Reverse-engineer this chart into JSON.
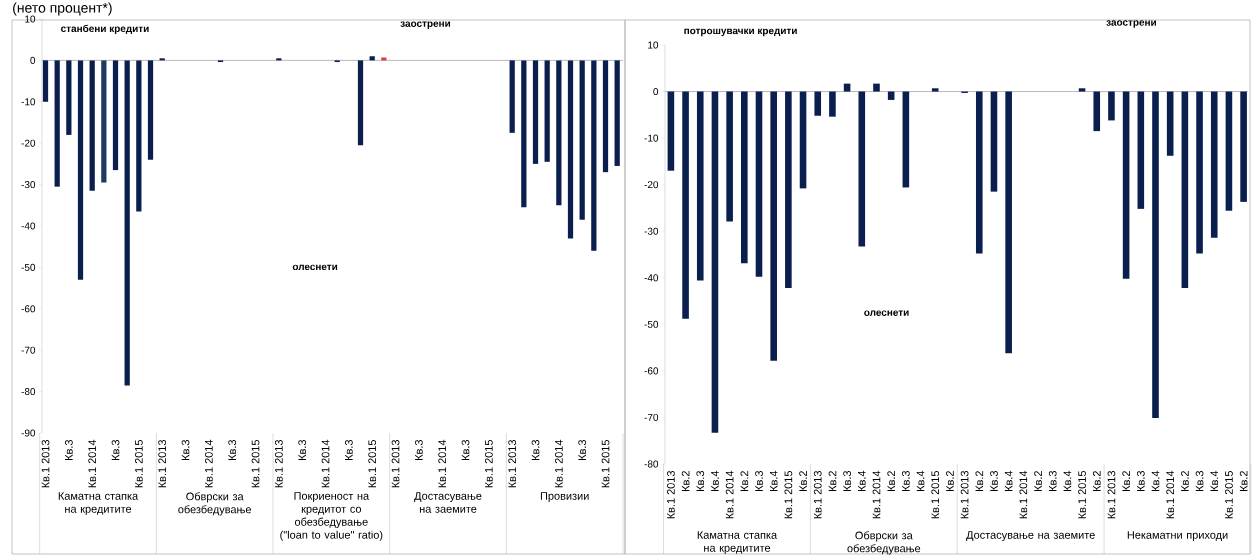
{
  "chart_data": [
    {
      "type": "bar",
      "title": "станбени кредити",
      "subtitle": "(нето процент*)",
      "categories": [
        "Кв.1 2013",
        null,
        "Кв.3",
        null,
        "Кв.1 2014",
        null,
        "Кв.3",
        null,
        "Кв.1 2015",
        null,
        "Кв.1 2013",
        null,
        "Кв.3",
        null,
        "Кв.1 2014",
        null,
        "Кв.3",
        null,
        "Кв.1 2015",
        null,
        "Кв.1 2013",
        null,
        "Кв.3",
        null,
        "Кв.1 2014",
        null,
        "Кв.3",
        null,
        "Кв.1 2015",
        null,
        "Кв.1 2013",
        null,
        "Кв.3",
        null,
        "Кв.1 2014",
        null,
        "Кв.3",
        null,
        "Кв.1 2015",
        null,
        "Кв.1 2013",
        null,
        "Кв.3",
        null,
        "Кв.1 2014",
        null,
        "Кв.3",
        null,
        "Кв.1 2015",
        null
      ],
      "values": [
        -10,
        -30.5,
        -18,
        -53,
        -31.5,
        -29.5,
        -26.5,
        -78.5,
        -36.5,
        -24,
        0.5,
        null,
        null,
        null,
        null,
        -0.4,
        null,
        null,
        null,
        null,
        0.5,
        null,
        null,
        null,
        null,
        -0.4,
        null,
        -20.5,
        1,
        0.7,
        null,
        null,
        null,
        null,
        null,
        null,
        null,
        null,
        null,
        null,
        -17.5,
        -35.5,
        -25,
        -24.5,
        -35,
        -43,
        -38.5,
        -46,
        -27,
        -25.5
      ],
      "colors": [
        "#0b1f4f",
        "#0b1f4f",
        "#0b1f4f",
        "#0b1f4f",
        "#0b1f4f",
        "#1f3a5f",
        "#0b1f4f",
        "#0b1f4f",
        "#0b1f4f",
        "#0b1f4f",
        "#0b1f4f",
        "#0b1f4f",
        "#0b1f4f",
        "#0b1f4f",
        "#0b1f4f",
        "#0b1f4f",
        "#0b1f4f",
        "#0b1f4f",
        "#0b1f4f",
        "#0b1f4f",
        "#0b1f4f",
        "#0b1f4f",
        "#0b1f4f",
        "#0b1f4f",
        "#0b1f4f",
        "#0b1f4f",
        "#0b1f4f",
        "#0b1f4f",
        "#0b1f4f",
        "#e03c3c",
        "#0b1f4f",
        "#0b1f4f",
        "#0b1f4f",
        "#0b1f4f",
        "#0b1f4f",
        "#0b1f4f",
        "#0b1f4f",
        "#0b1f4f",
        "#0b1f4f",
        "#0b1f4f",
        "#0b1f4f",
        "#0b1f4f",
        "#0b1f4f",
        "#0b1f4f",
        "#0b1f4f",
        "#0b1f4f",
        "#0b1f4f",
        "#0b1f4f",
        "#0b1f4f",
        "#0b1f4f"
      ],
      "ylim": [
        -90,
        10
      ],
      "yticks": [
        -90,
        -80,
        -70,
        -60,
        -50,
        -40,
        -30,
        -20,
        -10,
        0,
        10
      ],
      "annotations": [
        "заострени",
        "олеснети",
        "Каматна стапка на кредитите",
        "Обврски за обезбедување",
        "Покриеност на кредитот со обезбедување (\"loan to value\" ratio)",
        "Достасување на заемите",
        "Провизии"
      ]
    },
    {
      "type": "bar",
      "title": "потрошувачки кредити",
      "categories": [
        "Кв.1 2013",
        "Кв.2",
        "Кв.3",
        "Кв.4",
        "Кв.1 2014",
        "Кв.2",
        "Кв.3",
        "Кв.4",
        "Кв.1 2015",
        "Кв.2",
        "Кв.1 2013",
        "Кв.2",
        "Кв.3",
        "Кв.4",
        "Кв.1 2014",
        "Кв.2",
        "Кв.3",
        "Кв.4",
        "Кв.1 2015",
        "Кв.2",
        "Кв.1 2013",
        "Кв.2",
        "Кв.3",
        "Кв.4",
        "Кв.1 2014",
        "Кв.2",
        "Кв.3",
        "Кв.4",
        "Кв.1 2015",
        "Кв.2",
        "Кв.1 2013",
        "Кв.2",
        "Кв.3",
        "Кв.4",
        "Кв.1 2014",
        "Кв.2",
        "Кв.3",
        "Кв.4",
        "Кв.1 2015",
        "Кв.2"
      ],
      "values": [
        -17,
        -48.8,
        -40.6,
        -73.3,
        -27.9,
        -36.9,
        -39.8,
        -57.8,
        -42.2,
        -20.8,
        -5.2,
        -5.4,
        1.7,
        -33.3,
        1.7,
        -1.8,
        -20.6,
        null,
        0.7,
        null,
        -0.3,
        -34.8,
        -21.5,
        -56.2,
        null,
        null,
        null,
        null,
        0.7,
        -8.5,
        -6.2,
        -40.2,
        -25.2,
        -70.1,
        -13.8,
        -42.2,
        -34.8,
        -31.4,
        -25.6,
        -23.7
      ],
      "colors": [
        "#0b1f4f",
        "#0b1f4f",
        "#0b1f4f",
        "#0b1f4f",
        "#0b1f4f",
        "#0b1f4f",
        "#0b1f4f",
        "#0b1f4f",
        "#0b1f4f",
        "#0b1f4f",
        "#0b1f4f",
        "#0b1f4f",
        "#0b1f4f",
        "#0b1f4f",
        "#0b1f4f",
        "#0b1f4f",
        "#0b1f4f",
        "#0b1f4f",
        "#0b1f4f",
        "#0b1f4f",
        "#0b1f4f",
        "#0b1f4f",
        "#0b1f4f",
        "#0b1f4f",
        "#0b1f4f",
        "#0b1f4f",
        "#0b1f4f",
        "#0b1f4f",
        "#0b1f4f",
        "#0b1f4f",
        "#0b1f4f",
        "#0b1f4f",
        "#0b1f4f",
        "#0b1f4f",
        "#0b1f4f",
        "#0b1f4f",
        "#0b1f4f",
        "#0b1f4f",
        "#0b1f4f",
        "#0b1f4f"
      ],
      "ylim": [
        -80,
        10
      ],
      "yticks": [
        -80,
        -70,
        -60,
        -50,
        -40,
        -30,
        -20,
        -10,
        0,
        10
      ],
      "annotations": [
        "заострени",
        "олеснети",
        "Каматна стапка на кредитите",
        "Обврски за обезбедување",
        "Достасување на заемите",
        "Некаматни приходи"
      ]
    }
  ]
}
